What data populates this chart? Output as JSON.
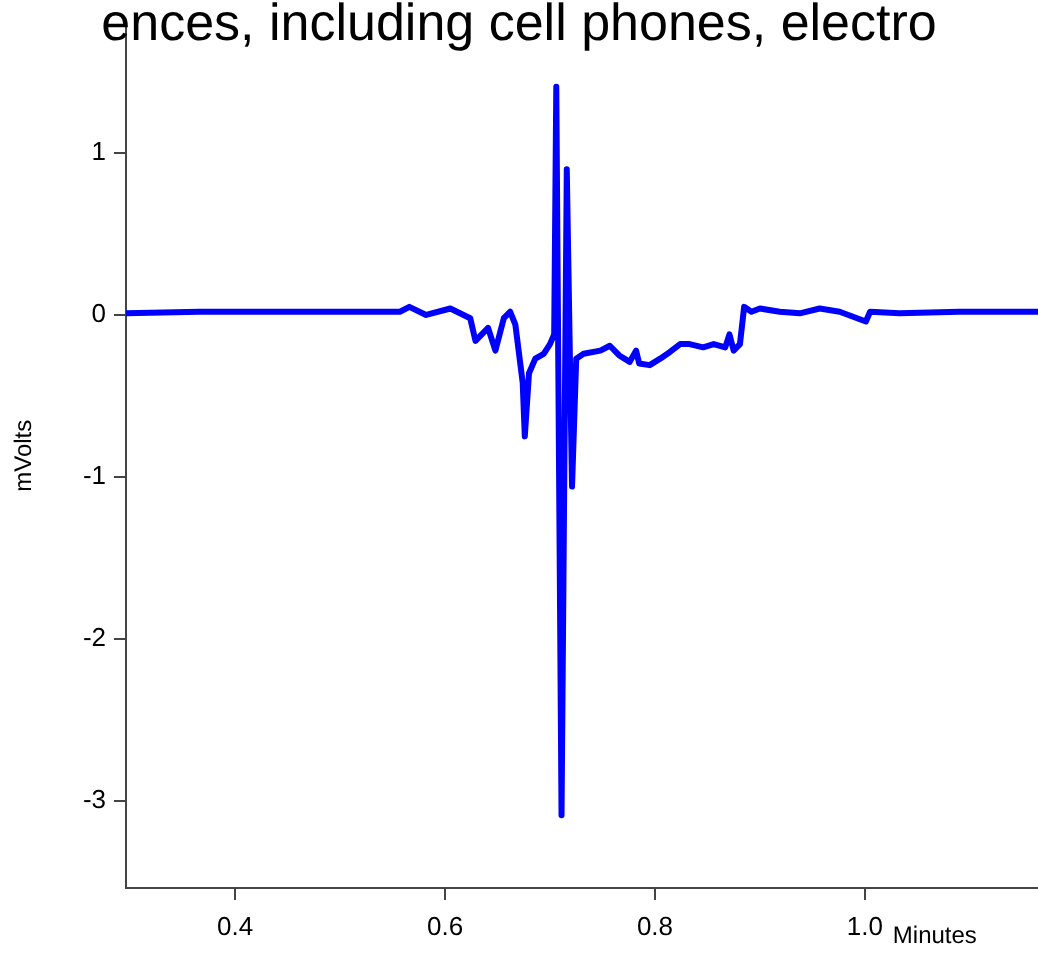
{
  "chart_data": {
    "type": "line",
    "title": "ences, including cell phones, electro",
    "xlabel": "Minutes",
    "ylabel": "mVolts",
    "x": [
      0.296,
      0.366,
      0.462,
      0.557,
      0.566,
      0.582,
      0.605,
      0.624,
      0.629,
      0.641,
      0.648,
      0.656,
      0.662,
      0.667,
      0.674,
      0.676,
      0.68,
      0.686,
      0.694,
      0.7,
      0.704,
      0.706,
      0.711,
      0.716,
      0.721,
      0.725,
      0.732,
      0.748,
      0.757,
      0.766,
      0.776,
      0.782,
      0.785,
      0.795,
      0.805,
      0.814,
      0.824,
      0.833,
      0.846,
      0.856,
      0.867,
      0.871,
      0.875,
      0.881,
      0.885,
      0.892,
      0.9,
      0.919,
      0.938,
      0.957,
      0.976,
      1.001,
      1.005,
      1.033,
      1.09,
      1.165
    ],
    "series": [
      {
        "color": "#0000ff",
        "values": [
          0.01,
          0.02,
          0.02,
          0.02,
          0.05,
          0,
          0.04,
          -0.02,
          -0.16,
          -0.08,
          -0.22,
          -0.02,
          0.02,
          -0.06,
          -0.42,
          -0.75,
          -0.36,
          -0.27,
          -0.24,
          -0.18,
          -0.12,
          1.41,
          -3.09,
          0.9,
          -1.06,
          -0.27,
          -0.24,
          -0.22,
          -0.19,
          -0.25,
          -0.29,
          -0.22,
          -0.3,
          -0.31,
          -0.27,
          -0.23,
          -0.18,
          -0.18,
          -0.2,
          -0.18,
          -0.2,
          -0.12,
          -0.22,
          -0.18,
          0.05,
          0.02,
          0.04,
          0.02,
          0.01,
          0.04,
          0.02,
          -0.04,
          0.02,
          0.01,
          0.02,
          0.02
        ]
      }
    ],
    "xlim": [
      0.296,
      1.165
    ],
    "xticks": [
      0.4,
      0.6,
      0.8,
      {
        "value": 1,
        "label": "1.0"
      }
    ],
    "ylim": [
      -3.54,
      1.8
    ],
    "yticks": [
      -3,
      -2,
      -1,
      0,
      1
    ],
    "grid": false,
    "legend": false
  }
}
